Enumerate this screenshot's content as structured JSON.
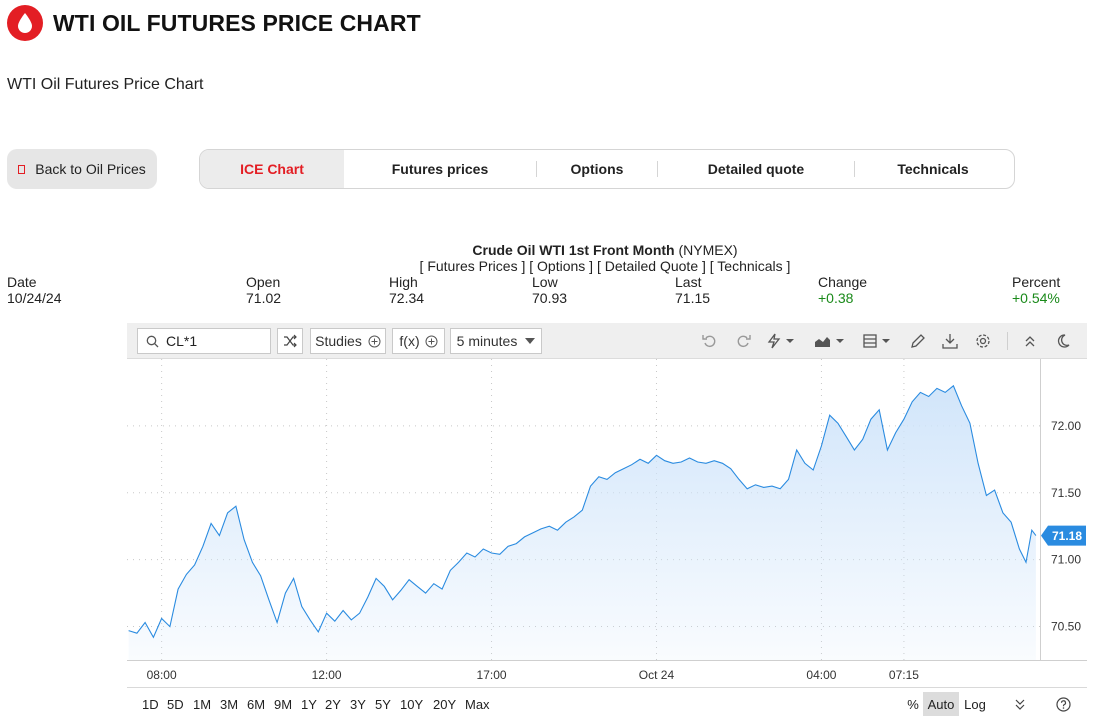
{
  "page": {
    "title": "WTI OIL FUTURES PRICE CHART",
    "subtitle": "WTI Oil Futures Price Chart",
    "back_button": "Back to Oil Prices",
    "tabs": [
      "ICE Chart",
      "Futures prices",
      "Options",
      "Detailed quote",
      "Technicals"
    ],
    "active_tab": "ICE Chart",
    "accent_color": "#e31e24"
  },
  "instrument": {
    "name": "Crude Oil WTI 1st Front Month",
    "exchange": "(NYMEX)",
    "links": "[ Futures Prices ] [ Options ] [ Detailed Quote ] [ Technicals ]"
  },
  "stats": [
    {
      "label": "Date",
      "value": "10/24/24",
      "positive": false
    },
    {
      "label": "Open",
      "value": "71.02",
      "positive": false
    },
    {
      "label": "High",
      "value": "72.34",
      "positive": false
    },
    {
      "label": "Low",
      "value": "70.93",
      "positive": false
    },
    {
      "label": "Last",
      "value": "71.15",
      "positive": false
    },
    {
      "label": "Change",
      "value": "+0.38",
      "positive": true
    },
    {
      "label": "Percent",
      "value": "+0.54%",
      "positive": true
    }
  ],
  "toolbar": {
    "symbol": "CL*1",
    "studies": "Studies",
    "fx": "f(x)",
    "interval": "5 minutes",
    "icons": [
      "compare-icon",
      "undo-icon",
      "redo-icon",
      "draw-tools-icon",
      "chart-type-icon",
      "layout-icon",
      "pencil-icon",
      "download-icon",
      "settings-icon",
      "collapse-icon",
      "dark-mode-icon"
    ]
  },
  "ranges": [
    "1D",
    "5D",
    "1M",
    "3M",
    "6M",
    "9M",
    "1Y",
    "2Y",
    "3Y",
    "5Y",
    "10Y",
    "20Y",
    "Max"
  ],
  "scales": {
    "percent": "%",
    "auto": "Auto",
    "log": "Log",
    "active": "Auto"
  },
  "chart_data": {
    "type": "area",
    "current_price_label": "71.18",
    "line_color": "#2a8be0",
    "fill_color": "#cfe4fa",
    "ylim": [
      70.25,
      72.5
    ],
    "y_ticks": [
      "72.00",
      "71.50",
      "71.00",
      "70.50"
    ],
    "y_tick_values": [
      72.0,
      71.5,
      71.0,
      70.5
    ],
    "x_ticks": [
      "08:00",
      "12:00",
      "17:00",
      "Oct 24",
      "04:00",
      "07:15"
    ],
    "x_tick_values": [
      0,
      20,
      40,
      60,
      80,
      90
    ],
    "x_range": [
      -4.2,
      106.5
    ],
    "grid": true,
    "x_unit_note": "x in 12-minute steps from 08:00",
    "series": [
      {
        "values": [
          [
            -4,
            70.47
          ],
          [
            -3,
            70.45
          ],
          [
            -2,
            70.53
          ],
          [
            -1,
            70.42
          ],
          [
            0,
            70.56
          ],
          [
            1,
            70.5
          ],
          [
            2,
            70.78
          ],
          [
            3,
            70.89
          ],
          [
            4,
            70.96
          ],
          [
            5,
            71.1
          ],
          [
            6,
            71.27
          ],
          [
            7,
            71.18
          ],
          [
            8,
            71.35
          ],
          [
            9,
            71.4
          ],
          [
            10,
            71.15
          ],
          [
            11,
            70.98
          ],
          [
            12,
            70.88
          ],
          [
            13,
            70.7
          ],
          [
            14,
            70.53
          ],
          [
            15,
            70.75
          ],
          [
            16,
            70.86
          ],
          [
            17,
            70.65
          ],
          [
            18,
            70.55
          ],
          [
            19,
            70.46
          ],
          [
            20,
            70.6
          ],
          [
            21,
            70.54
          ],
          [
            22,
            70.62
          ],
          [
            23,
            70.55
          ],
          [
            24,
            70.6
          ],
          [
            25,
            70.72
          ],
          [
            26,
            70.86
          ],
          [
            27,
            70.8
          ],
          [
            28,
            70.7
          ],
          [
            29,
            70.77
          ],
          [
            30,
            70.85
          ],
          [
            31,
            70.8
          ],
          [
            32,
            70.75
          ],
          [
            33,
            70.82
          ],
          [
            34,
            70.78
          ],
          [
            35,
            70.92
          ],
          [
            36,
            70.98
          ],
          [
            37,
            71.05
          ],
          [
            38,
            71.02
          ],
          [
            39,
            71.08
          ],
          [
            40,
            71.05
          ],
          [
            41,
            71.04
          ],
          [
            42,
            71.1
          ],
          [
            43,
            71.12
          ],
          [
            44,
            71.17
          ],
          [
            45,
            71.2
          ],
          [
            46,
            71.23
          ],
          [
            47,
            71.25
          ],
          [
            48,
            71.22
          ],
          [
            49,
            71.28
          ],
          [
            50,
            71.32
          ],
          [
            51,
            71.37
          ],
          [
            52,
            71.55
          ],
          [
            53,
            71.62
          ],
          [
            54,
            71.6
          ],
          [
            55,
            71.65
          ],
          [
            56,
            71.68
          ],
          [
            57,
            71.71
          ],
          [
            58,
            71.75
          ],
          [
            59,
            71.72
          ],
          [
            60,
            71.78
          ],
          [
            61,
            71.74
          ],
          [
            62,
            71.72
          ],
          [
            63,
            71.73
          ],
          [
            64,
            71.76
          ],
          [
            65,
            71.73
          ],
          [
            66,
            71.72
          ],
          [
            67,
            71.74
          ],
          [
            68,
            71.72
          ],
          [
            69,
            71.68
          ],
          [
            70,
            71.6
          ],
          [
            71,
            71.53
          ],
          [
            72,
            71.56
          ],
          [
            73,
            71.54
          ],
          [
            74,
            71.55
          ],
          [
            75,
            71.53
          ],
          [
            76,
            71.6
          ],
          [
            77,
            71.82
          ],
          [
            78,
            71.72
          ],
          [
            79,
            71.67
          ],
          [
            80,
            71.85
          ],
          [
            81,
            72.08
          ],
          [
            82,
            72.02
          ],
          [
            83,
            71.92
          ],
          [
            84,
            71.82
          ],
          [
            85,
            71.9
          ],
          [
            86,
            72.05
          ],
          [
            87,
            72.12
          ],
          [
            88,
            71.82
          ],
          [
            89,
            71.95
          ],
          [
            90,
            72.05
          ],
          [
            91,
            72.18
          ],
          [
            92,
            72.25
          ],
          [
            93,
            72.22
          ],
          [
            94,
            72.28
          ],
          [
            95,
            72.25
          ],
          [
            96,
            72.3
          ],
          [
            97,
            72.15
          ],
          [
            98,
            72.02
          ],
          [
            99,
            71.72
          ],
          [
            100,
            71.48
          ],
          [
            101,
            71.52
          ],
          [
            102,
            71.35
          ],
          [
            103,
            71.28
          ],
          [
            104,
            71.08
          ],
          [
            104.8,
            70.98
          ],
          [
            105.5,
            71.22
          ],
          [
            106,
            71.18
          ]
        ]
      }
    ]
  }
}
